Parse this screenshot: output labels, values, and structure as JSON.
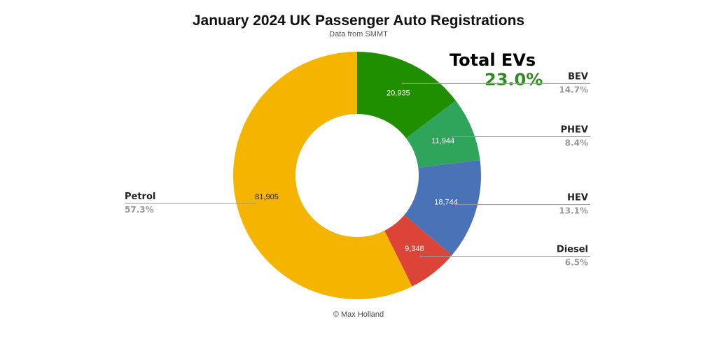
{
  "chart_data": {
    "type": "pie",
    "donut": true,
    "title": "January 2024 UK Passenger Auto Registrations",
    "subtitle": "Data from SMMT",
    "credit": "© Max Holland",
    "slices": [
      {
        "label": "BEV",
        "value": 20935,
        "percent": "14.7%",
        "color": "#1f8f00"
      },
      {
        "label": "PHEV",
        "value": 11944,
        "percent": "8.4%",
        "color": "#2ea55a"
      },
      {
        "label": "HEV",
        "value": 18744,
        "percent": "13.1%",
        "color": "#4a72b6"
      },
      {
        "label": "Diesel",
        "value": 9348,
        "percent": "6.5%",
        "color": "#dc4437"
      },
      {
        "label": "Petrol",
        "value": 81905,
        "percent": "57.3%",
        "color": "#f4b400"
      }
    ],
    "value_labels": [
      "20,935",
      "11,944",
      "18,744",
      "9,348",
      "81,905"
    ],
    "annotation": {
      "title": "Total EVs",
      "value": "23.0%",
      "value_color": "#2e8b1e"
    }
  }
}
